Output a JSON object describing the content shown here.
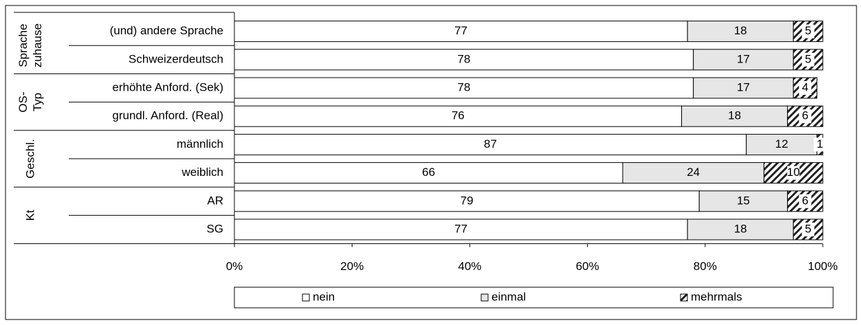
{
  "chart_data": {
    "type": "bar",
    "orientation": "horizontal",
    "stacked": true,
    "category_groups": [
      {
        "lines": [
          "Sprache",
          "zuhause"
        ],
        "categories": [
          "(und) andere Sprache",
          "Schweizerdeutsch"
        ]
      },
      {
        "lines": [
          "OS-",
          "Typ"
        ],
        "categories": [
          "erhöhte Anford.  (Sek)",
          "grundl. Anford. (Real)"
        ]
      },
      {
        "lines": [
          "Geschl."
        ],
        "categories": [
          "männlich",
          "weiblich"
        ]
      },
      {
        "lines": [
          "Kt"
        ],
        "categories": [
          "AR",
          "SG"
        ]
      }
    ],
    "series": [
      {
        "name": "nein",
        "color": "#ffffff",
        "values": [
          77,
          78,
          78,
          76,
          87,
          66,
          79,
          77
        ]
      },
      {
        "name": "einmal",
        "color": "#e6e6e6",
        "values": [
          18,
          17,
          17,
          18,
          12,
          24,
          15,
          18
        ]
      },
      {
        "name": "mehrmals",
        "color": "hatch",
        "values": [
          5,
          5,
          4,
          6,
          1,
          10,
          6,
          5
        ]
      }
    ],
    "xlim": [
      0,
      100
    ],
    "xticks": [
      {
        "value": 0,
        "label": "0%"
      },
      {
        "value": 20,
        "label": "20%"
      },
      {
        "value": 40,
        "label": "40%"
      },
      {
        "value": 60,
        "label": "60%"
      },
      {
        "value": 80,
        "label": "80%"
      },
      {
        "value": 100,
        "label": "100%"
      }
    ],
    "legend": "bottom"
  }
}
